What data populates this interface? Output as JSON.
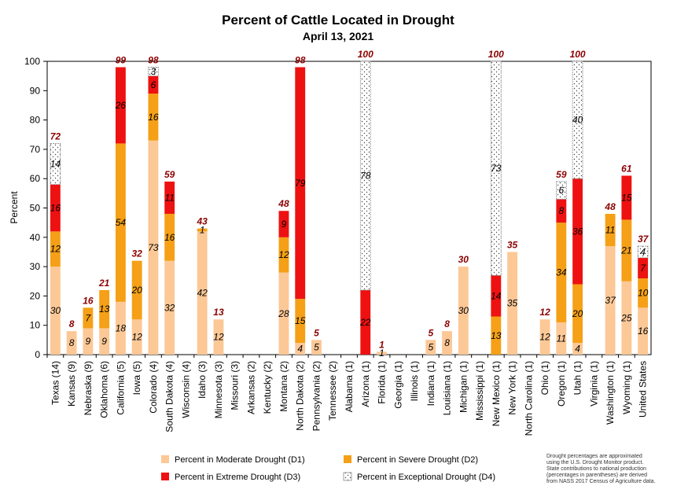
{
  "chart_data": {
    "type": "bar",
    "stacked": true,
    "title": "Percent of Cattle Located in Drought",
    "subtitle": "April 13, 2021",
    "ylabel": "Percent",
    "ylim": [
      0,
      100
    ],
    "yticks": [
      0,
      10,
      20,
      30,
      40,
      50,
      60,
      70,
      80,
      90,
      100
    ],
    "categories": [
      "Texas (14)",
      "Kansas (9)",
      "Nebraska (9)",
      "Oklahoma (6)",
      "California (5)",
      "Iowa (5)",
      "Colorado (4)",
      "South Dakota (4)",
      "Wisconsin (4)",
      "Idaho (3)",
      "Minnesota (3)",
      "Missouri (3)",
      "Arkansas (2)",
      "Kentucky (2)",
      "Montana (2)",
      "North Dakota (2)",
      "Pennsylvania (2)",
      "Tennessee (2)",
      "Alabama (1)",
      "Arizona (1)",
      "Florida (1)",
      "Georgia (1)",
      "Illinois (1)",
      "Indiana (1)",
      "Louisiana (1)",
      "Michigan (1)",
      "Mississippi (1)",
      "New Mexico (1)",
      "New York (1)",
      "North Carolina (1)",
      "Ohio (1)",
      "Oregon (1)",
      "Utah (1)",
      "Virginia (1)",
      "Washington (1)",
      "Wyoming (1)",
      "United States"
    ],
    "series": [
      {
        "name": "Percent in Moderate Drought (D1)",
        "color": "#fcc896",
        "values": [
          30,
          8,
          9,
          9,
          18,
          12,
          73,
          32,
          0,
          42,
          12,
          0,
          0,
          0,
          28,
          4,
          5,
          0,
          0,
          0,
          1,
          0,
          0,
          5,
          8,
          30,
          0,
          0,
          35,
          0,
          12,
          11,
          4,
          0,
          37,
          25,
          16
        ],
        "labels": [
          "30",
          "8",
          "9",
          "9",
          "18",
          "12",
          "73",
          "32",
          "",
          "42",
          "12",
          "",
          "",
          "",
          "28",
          "4",
          "5",
          "",
          "",
          "",
          "1",
          "",
          "",
          "5",
          "8",
          "30",
          "",
          "",
          "35",
          "",
          "12",
          "11",
          "4",
          "",
          "37",
          "25",
          "16"
        ]
      },
      {
        "name": "Percent in Severe Drought (D2)",
        "color": "#f5a017",
        "values": [
          12,
          0,
          7,
          13,
          54,
          20,
          16,
          16,
          0,
          1,
          0,
          0,
          0,
          0,
          12,
          15,
          0,
          0,
          0,
          0,
          0,
          0,
          0,
          0,
          0,
          0,
          0,
          13,
          0,
          0,
          0,
          34,
          20,
          0,
          11,
          21,
          10
        ],
        "labels": [
          "12",
          "",
          "7",
          "13",
          "54",
          "20",
          "16",
          "16",
          "",
          "1",
          "",
          "",
          "",
          "",
          "12",
          "15",
          "",
          "",
          "",
          "",
          "",
          "",
          "",
          "",
          "",
          "",
          "",
          "13",
          "",
          "",
          "",
          "34",
          "20",
          "",
          "11",
          "21",
          "10"
        ]
      },
      {
        "name": "Percent in Extreme Drought (D3)",
        "color": "#ee1111",
        "values": [
          16,
          0,
          0,
          0,
          26,
          0,
          6,
          11,
          0,
          0,
          0,
          0,
          0,
          0,
          9,
          79,
          0,
          0,
          0,
          22,
          0,
          0,
          0,
          0,
          0,
          0,
          0,
          14,
          0,
          0,
          0,
          8,
          36,
          0,
          0,
          15,
          7
        ],
        "labels": [
          "16",
          "",
          "",
          "",
          "26",
          "",
          "6",
          "11",
          "",
          "",
          "",
          "",
          "",
          "",
          "9",
          "79",
          "",
          "",
          "",
          "22",
          "",
          "",
          "",
          "",
          "",
          "",
          "",
          "14",
          "",
          "",
          "",
          "8",
          "36",
          "",
          "",
          "15",
          "7"
        ]
      },
      {
        "name": "Percent in Exceptional Drought (D4)",
        "color": "#ffffff",
        "values": [
          14,
          0,
          0,
          0,
          0,
          0,
          3,
          0,
          0,
          0,
          0,
          0,
          0,
          0,
          0,
          0,
          0,
          0,
          0,
          78,
          0,
          0,
          0,
          0,
          0,
          0,
          0,
          73,
          0,
          0,
          0,
          6,
          40,
          0,
          0,
          0,
          4
        ],
        "labels": [
          "14",
          "",
          "",
          "",
          "",
          "",
          "3",
          "",
          "",
          "",
          "",
          "",
          "",
          "",
          "",
          "",
          "",
          "",
          "",
          "78",
          "",
          "",
          "",
          "",
          "",
          "",
          "",
          "73",
          "",
          "",
          "",
          "6",
          "40",
          "",
          "",
          "",
          "4"
        ]
      }
    ],
    "totals": [
      "72",
      "8",
      "16",
      "21",
      "99",
      "32",
      "98",
      "59",
      "",
      "43",
      "13",
      "",
      "",
      "",
      "48",
      "98",
      "5",
      "",
      "",
      "100",
      "1",
      "",
      "",
      "5",
      "8",
      "30",
      "",
      "100",
      "35",
      "",
      "12",
      "59",
      "100",
      "",
      "48",
      "61",
      "37"
    ],
    "legend": {
      "placement": "bottom"
    },
    "grid": false
  },
  "legend_items": [
    {
      "label": "Percent in Moderate Drought (D1)",
      "color": "#fcc896",
      "pattern": false
    },
    {
      "label": "Percent in Severe Drought (D2)",
      "color": "#f5a017",
      "pattern": false
    },
    {
      "label": "Percent in Extreme Drought (D3)",
      "color": "#ee1111",
      "pattern": false
    },
    {
      "label": "Percent in Exceptional Drought (D4)",
      "color": "#ffffff",
      "pattern": true
    }
  ],
  "footnote": [
    "Drought percentages are approximated",
    "using the U.S. Drought Monitor product.",
    "State contributions to national production",
    "(percentages in parentheses) are derived",
    "from NASS 2017 Census of Agriculture data."
  ]
}
